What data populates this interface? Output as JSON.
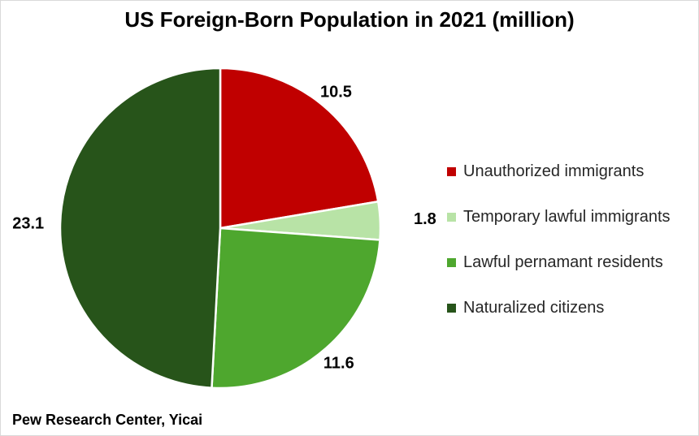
{
  "chart_data": {
    "type": "pie",
    "title": "US Foreign-Born Population in 2021 (million)",
    "categories": [
      "Unauthorized immigrants",
      "Temporary lawful immigrants",
      "Lawful pernamant residents",
      "Naturalized citizens"
    ],
    "values": [
      10.5,
      1.8,
      11.6,
      23.1
    ],
    "value_labels": [
      "10.5",
      "1.8",
      "11.6",
      "23.1"
    ],
    "colors": [
      "#c00000",
      "#b8e3a6",
      "#4ea72e",
      "#27541a"
    ],
    "start_angle_deg": 0,
    "direction": "clockwise",
    "legend": "right",
    "source": "Pew Research Center, Yicai"
  }
}
